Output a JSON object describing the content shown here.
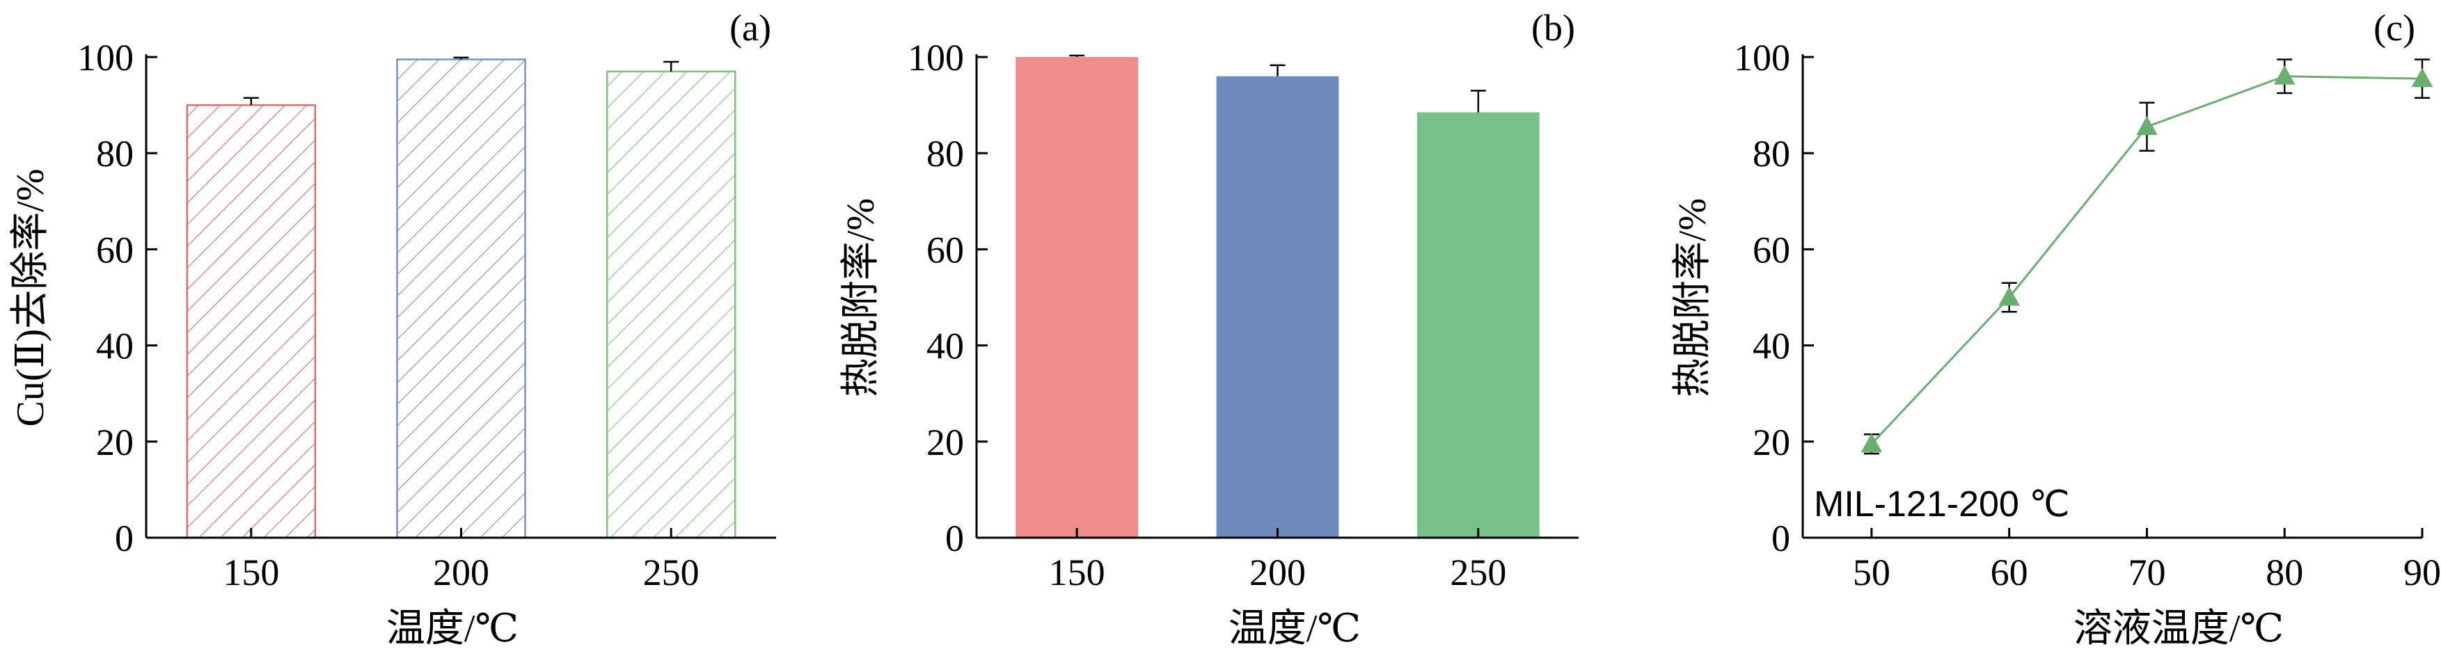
{
  "chart_data": [
    {
      "type": "bar",
      "panel_label": "(a)",
      "categories": [
        "150",
        "200",
        "250"
      ],
      "values": [
        90,
        99.5,
        97
      ],
      "errors": [
        1.5,
        0.4,
        2.0
      ],
      "ylabel": "Cu(Ⅱ)去除率/%",
      "xlabel": "温度/℃",
      "ylim": [
        0,
        100
      ],
      "yticks": [
        0,
        20,
        40,
        60,
        80,
        100
      ],
      "fill": "hatched",
      "colors": [
        "#e06a6a",
        "#7a8fcc",
        "#7ac47a"
      ]
    },
    {
      "type": "bar",
      "panel_label": "(b)",
      "categories": [
        "150",
        "200",
        "250"
      ],
      "values": [
        100,
        96,
        88.5
      ],
      "errors": [
        0.3,
        2.3,
        4.5
      ],
      "ylabel": "热脱附率/%",
      "xlabel": "温度/℃",
      "ylim": [
        0,
        100
      ],
      "yticks": [
        0,
        20,
        40,
        60,
        80,
        100
      ],
      "fill": "solid",
      "colors": [
        "#ef8d8b",
        "#6f8bbd",
        "#78c18a"
      ]
    },
    {
      "type": "line",
      "panel_label": "(c)",
      "x": [
        50,
        60,
        70,
        80,
        90
      ],
      "values": [
        19.5,
        50,
        85.5,
        96,
        95.5
      ],
      "errors": [
        2,
        3,
        5,
        3.5,
        4
      ],
      "ylabel": "热脱附率/%",
      "xlabel": "溶液温度/℃",
      "annotation": "MIL-121-200 ℃",
      "xlim": [
        45,
        90
      ],
      "xticks": [
        50,
        60,
        70,
        80,
        90
      ],
      "ylim": [
        0,
        100
      ],
      "yticks": [
        0,
        20,
        40,
        60,
        80,
        100
      ],
      "marker": "triangle",
      "color": "#6aaf6e"
    }
  ]
}
